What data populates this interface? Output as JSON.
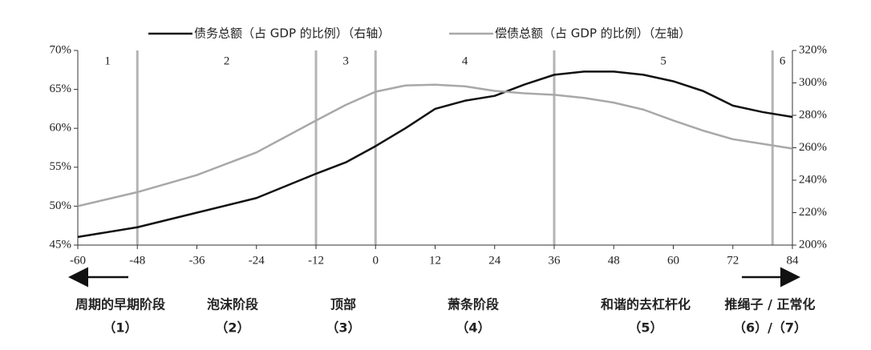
{
  "chart_data": {
    "type": "line",
    "x": [
      -60,
      -48,
      -36,
      -24,
      -12,
      -6,
      0,
      6,
      12,
      18,
      24,
      30,
      36,
      42,
      48,
      54,
      60,
      66,
      72,
      78,
      84
    ],
    "series": [
      {
        "name": "债务总额（占 GDP 的比例）（右轴）",
        "color": "#111111",
        "axis": "y2",
        "values": [
          205,
          211,
          220,
          229,
          244,
          251,
          261,
          272,
          284,
          289,
          292,
          299,
          305,
          307,
          307,
          305,
          301,
          295,
          286,
          282,
          279
        ]
      },
      {
        "name": "偿债总额（占 GDP 的比例）（左轴）",
        "color": "#a8a8a8",
        "values": [
          50,
          51.8,
          54,
          56.9,
          61,
          63,
          64.7,
          65.5,
          65.6,
          65.4,
          64.8,
          64.5,
          64.3,
          63.9,
          63.3,
          62.4,
          61,
          59.7,
          58.6,
          58,
          57.4
        ]
      }
    ],
    "xlim": [
      -60,
      84
    ],
    "xticks": [
      -60,
      -48,
      -36,
      -24,
      -12,
      0,
      12,
      24,
      36,
      48,
      60,
      72,
      84
    ],
    "ylim": [
      45,
      70
    ],
    "yticks": [
      {
        "value": 45,
        "label": "45%"
      },
      {
        "value": 50,
        "label": "50%"
      },
      {
        "value": 55,
        "label": "55%"
      },
      {
        "value": 60,
        "label": "60%"
      },
      {
        "value": 65,
        "label": "65%"
      },
      {
        "value": 70,
        "label": "70%"
      }
    ],
    "y2lim": [
      200,
      320
    ],
    "y2ticks": [
      {
        "value": 200,
        "label": "200%"
      },
      {
        "value": 220,
        "label": "220%"
      },
      {
        "value": 240,
        "label": "240%"
      },
      {
        "value": 260,
        "label": "260%"
      },
      {
        "value": 280,
        "label": "280%"
      },
      {
        "value": 300,
        "label": "300%"
      },
      {
        "value": 320,
        "label": "320%"
      }
    ],
    "phase_boundaries": [
      -48,
      -12,
      0,
      36,
      80
    ],
    "phase_labels": [
      "1",
      "2",
      "3",
      "4",
      "5",
      "6"
    ],
    "stages": [
      {
        "name": "周期的早期阶段",
        "number": "（1）"
      },
      {
        "name": "泡沫阶段",
        "number": "（2）"
      },
      {
        "name": "顶部",
        "number": "（3）"
      },
      {
        "name": "萧条阶段",
        "number": "（4）"
      },
      {
        "name": "和谐的去杠杆化",
        "number": "（5）"
      },
      {
        "name": "推绳子 / 正常化",
        "number": "（6）/（7）"
      }
    ]
  }
}
